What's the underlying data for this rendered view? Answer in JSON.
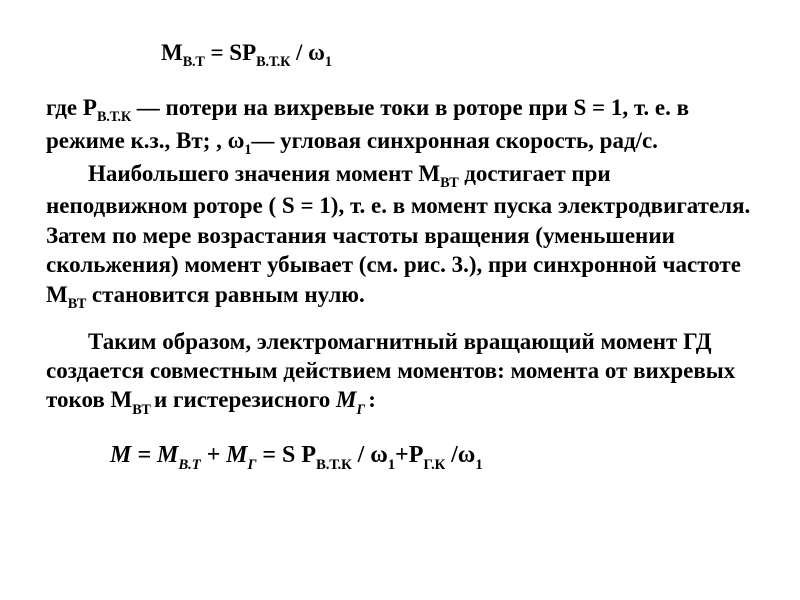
{
  "equation_top": {
    "lhs": "М",
    "lhs_sub": "В.Т",
    "eq": " = SP",
    "rhs_sub": "В.Т.К",
    "div": " / ω",
    "omega_sub": "1"
  },
  "p1": {
    "a": "где Р",
    "sub1": "В.Т.К",
    "b": " — потери на вихревые токи в роторе при S = 1, т. е. в режиме к.з., Вт; , ω",
    "sub2": "1",
    "c": "— угловая синхронная скорость, рад/с."
  },
  "p2": {
    "a": "Наибольшего значения момент М",
    "sub1": "ВТ",
    "b": "  достигает при неподвижном роторе ( S = 1), т. е. в момент пуска электродвигателя. Затем по мере возрастания частоты вращения (уменьшении скольжения) момент  убывает (см. рис. 3.), при синхронной частоте М",
    "sub2": "ВТ",
    "c": " становится равным нулю."
  },
  "p3": {
    "a": "Таким образом, электромагнитный вращающий момент ГД создается совместным действием моментов:  момента от вихревых токов М",
    "sub1": "ВТ ",
    "b": " и гистерезисного ",
    "m": "М",
    "sub2": "Г ",
    "c": ":"
  },
  "equation_bottom": {
    "t1": "М = М",
    "s1": "В.Т",
    "t2": " + М",
    "s2": "Г",
    "t3": " = S Р",
    "s3": "В.Т.К",
    "t4": " / ",
    "om1": "ω",
    "s4": "1",
    "t5": "+Р",
    "s5": "Г.К",
    "t6": " /",
    "om2": "ω",
    "s6": "1"
  }
}
